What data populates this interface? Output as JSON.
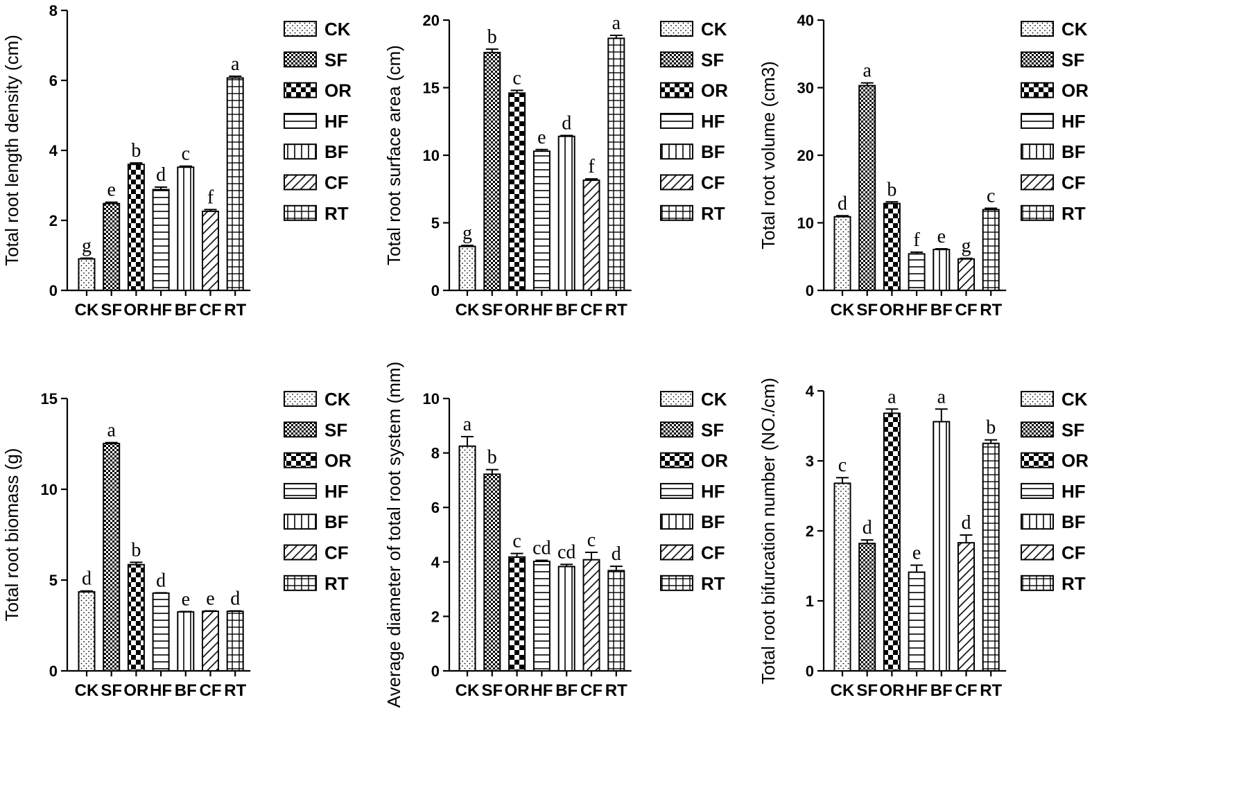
{
  "chart_data": [
    {
      "type": "bar",
      "ylabel": "Total root length density (cm)",
      "categories": [
        "CK",
        "SF",
        "OR",
        "HF",
        "BF",
        "CF",
        "RT"
      ],
      "values": [
        0.9,
        2.48,
        3.6,
        2.88,
        3.52,
        2.26,
        6.07
      ],
      "errors": [
        0.02,
        0.04,
        0.04,
        0.07,
        0.03,
        0.05,
        0.05
      ],
      "letters": [
        "g",
        "e",
        "b",
        "d",
        "c",
        "f",
        "a"
      ],
      "ylim": [
        0,
        8
      ],
      "yticks": [
        0,
        2,
        4,
        6,
        8
      ]
    },
    {
      "type": "bar",
      "ylabel": "Total root surface area (cm)",
      "categories": [
        "CK",
        "SF",
        "OR",
        "HF",
        "BF",
        "CF",
        "RT"
      ],
      "values": [
        3.25,
        17.6,
        14.6,
        10.3,
        11.4,
        8.15,
        18.65
      ],
      "errors": [
        0.08,
        0.25,
        0.2,
        0.12,
        0.06,
        0.1,
        0.22
      ],
      "letters": [
        "g",
        "b",
        "c",
        "e",
        "d",
        "f",
        "a"
      ],
      "ylim": [
        0,
        20
      ],
      "yticks": [
        0,
        5,
        10,
        15,
        20
      ]
    },
    {
      "type": "bar",
      "ylabel": "Total root volume (cm3)",
      "categories": [
        "CK",
        "SF",
        "OR",
        "HF",
        "BF",
        "CF",
        "RT"
      ],
      "values": [
        10.9,
        30.3,
        12.85,
        5.4,
        6.05,
        4.65,
        11.95
      ],
      "errors": [
        0.15,
        0.4,
        0.25,
        0.25,
        0.1,
        0.1,
        0.2
      ],
      "letters": [
        "d",
        "a",
        "b",
        "f",
        "e",
        "g",
        "c"
      ],
      "ylim": [
        0,
        40
      ],
      "yticks": [
        0,
        10,
        20,
        30,
        40
      ]
    },
    {
      "type": "bar",
      "ylabel": "Total root biomass (g)",
      "categories": [
        "CK",
        "SF",
        "OR",
        "HF",
        "BF",
        "CF",
        "RT"
      ],
      "values": [
        4.35,
        12.52,
        5.85,
        4.28,
        3.25,
        3.28,
        3.28
      ],
      "errors": [
        0.05,
        0.05,
        0.13,
        0.02,
        0.02,
        0.02,
        0.02
      ],
      "letters": [
        "d",
        "a",
        "b",
        "d",
        "e",
        "e",
        "d"
      ],
      "ylim": [
        0,
        15
      ],
      "yticks": [
        0,
        5,
        10,
        15
      ]
    },
    {
      "type": "bar",
      "ylabel": "Average diameter of total root system (mm)",
      "categories": [
        "CK",
        "SF",
        "OR",
        "HF",
        "BF",
        "CF",
        "RT"
      ],
      "values": [
        8.25,
        7.22,
        4.18,
        4.02,
        3.83,
        4.08,
        3.68
      ],
      "errors": [
        0.35,
        0.17,
        0.13,
        0.04,
        0.08,
        0.27,
        0.16
      ],
      "letters": [
        "a",
        "b",
        "c",
        "cd",
        "cd",
        "c",
        "d"
      ],
      "ylim": [
        0,
        10
      ],
      "yticks": [
        0,
        2,
        4,
        6,
        8,
        10
      ]
    },
    {
      "type": "bar",
      "ylabel": "Total root bifurcation number (NO./cm)",
      "categories": [
        "CK",
        "SF",
        "OR",
        "HF",
        "BF",
        "CF",
        "RT"
      ],
      "values": [
        2.68,
        1.82,
        3.68,
        1.41,
        3.56,
        1.83,
        3.25
      ],
      "errors": [
        0.08,
        0.05,
        0.06,
        0.1,
        0.18,
        0.11,
        0.05
      ],
      "letters": [
        "c",
        "d",
        "a",
        "e",
        "a",
        "d",
        "b"
      ],
      "ylim": [
        0,
        4
      ],
      "yticks": [
        0,
        1,
        2,
        3,
        4
      ]
    }
  ],
  "legend": {
    "entries": [
      "CK",
      "SF",
      "OR",
      "HF",
      "BF",
      "CF",
      "RT"
    ],
    "patterns": [
      "dots",
      "fine-check",
      "checker",
      "horizontal-lines",
      "vertical-lines",
      "diagonal-lines",
      "grid"
    ]
  },
  "colors": {
    "ink": "#000000",
    "background": "#ffffff"
  }
}
